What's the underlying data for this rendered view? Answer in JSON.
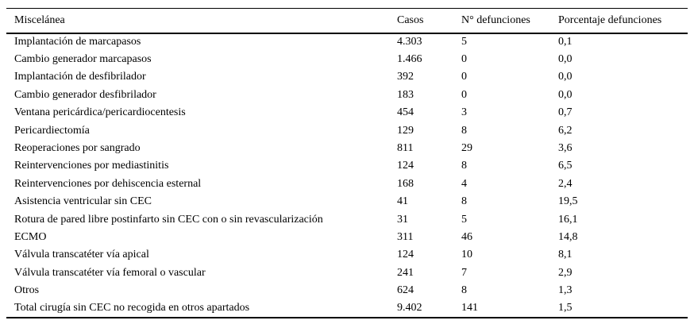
{
  "page": {
    "background_color": "#ffffff",
    "text_color": "#000000",
    "rule_color": "#000000"
  },
  "table": {
    "columns": [
      "Miscelánea",
      "Casos",
      "N° defunciones",
      "Porcentaje defunciones"
    ],
    "rows": [
      [
        "Implantación de marcapasos",
        "4.303",
        "5",
        "0,1"
      ],
      [
        "Cambio generador marcapasos",
        "1.466",
        "0",
        "0,0"
      ],
      [
        "Implantación de desfibrilador",
        "392",
        "0",
        "0,0"
      ],
      [
        "Cambio generador desfibrilador",
        "183",
        "0",
        "0,0"
      ],
      [
        "Ventana pericárdica/pericardiocentesis",
        "454",
        "3",
        "0,7"
      ],
      [
        "Pericardiectomía",
        "129",
        "8",
        "6,2"
      ],
      [
        "Reoperaciones por sangrado",
        "811",
        "29",
        "3,6"
      ],
      [
        "Reintervenciones por mediastinitis",
        "124",
        "8",
        "6,5"
      ],
      [
        "Reintervenciones por dehiscencia esternal",
        "168",
        "4",
        "2,4"
      ],
      [
        "Asistencia ventricular sin CEC",
        "41",
        "8",
        "19,5"
      ],
      [
        "Rotura de pared libre postinfarto sin CEC con o sin revascularización",
        "31",
        "5",
        "16,1"
      ],
      [
        "ECMO",
        "311",
        "46",
        "14,8"
      ],
      [
        "Válvula transcatéter vía apical",
        "124",
        "10",
        "8,1"
      ],
      [
        "Válvula transcatéter vía femoral o vascular",
        "241",
        "7",
        "2,9"
      ],
      [
        "Otros",
        "624",
        "8",
        "1,3"
      ],
      [
        "Total cirugía sin CEC no recogida en otros apartados",
        "9.402",
        "141",
        "1,5"
      ]
    ]
  },
  "chart_data": {
    "type": "table",
    "title": "Miscelánea",
    "columns": [
      "Miscelánea",
      "Casos",
      "N° defunciones",
      "Porcentaje defunciones"
    ],
    "categories": [
      "Implantación de marcapasos",
      "Cambio generador marcapasos",
      "Implantación de desfibrilador",
      "Cambio generador desfibrilador",
      "Ventana pericárdica/pericardiocentesis",
      "Pericardiectomía",
      "Reoperaciones por sangrado",
      "Reintervenciones por mediastinitis",
      "Reintervenciones por dehiscencia esternal",
      "Asistencia ventricular sin CEC",
      "Rotura de pared libre postinfarto sin CEC con o sin revascularización",
      "ECMO",
      "Válvula transcatéter vía apical",
      "Válvula transcatéter vía femoral o vascular",
      "Otros",
      "Total cirugía sin CEC no recogida en otros apartados"
    ],
    "series": [
      {
        "name": "Casos",
        "values": [
          4303,
          1466,
          392,
          183,
          454,
          129,
          811,
          124,
          168,
          41,
          31,
          311,
          124,
          241,
          624,
          9402
        ]
      },
      {
        "name": "N° defunciones",
        "values": [
          5,
          0,
          0,
          0,
          3,
          8,
          29,
          8,
          4,
          8,
          5,
          46,
          10,
          7,
          8,
          141
        ]
      },
      {
        "name": "Porcentaje defunciones",
        "values": [
          0.1,
          0.0,
          0.0,
          0.0,
          0.7,
          6.2,
          3.6,
          6.5,
          2.4,
          19.5,
          16.1,
          14.8,
          8.1,
          2.9,
          1.3,
          1.5
        ]
      }
    ]
  }
}
